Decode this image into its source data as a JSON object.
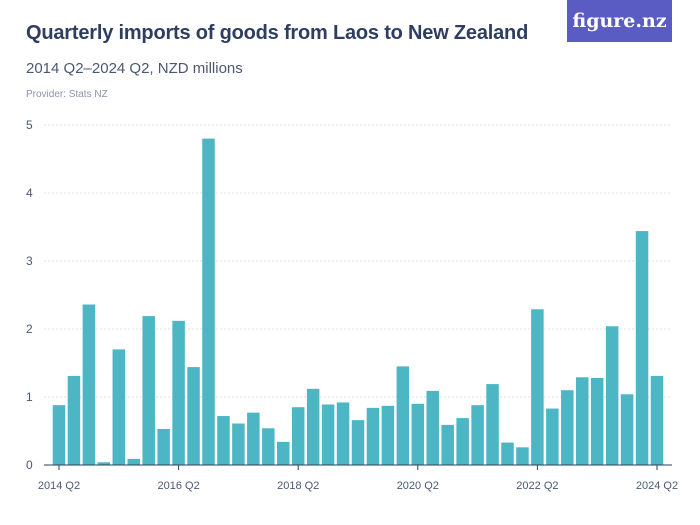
{
  "brand": {
    "logo_text": "figure.nz"
  },
  "chart_data": {
    "type": "bar",
    "title": "Quarterly imports of goods from Laos to New Zealand",
    "subtitle": "2014 Q2–2024 Q2, NZD millions",
    "provider": "Provider: Stats NZ",
    "xlabel": "",
    "ylabel": "",
    "ylim": [
      0,
      5
    ],
    "yticks": [
      0,
      1,
      2,
      3,
      4,
      5
    ],
    "bar_color": "#4db6c4",
    "grid": true,
    "categories": [
      "2014 Q2",
      "2014 Q3",
      "2014 Q4",
      "2015 Q1",
      "2015 Q2",
      "2015 Q3",
      "2015 Q4",
      "2016 Q1",
      "2016 Q2",
      "2016 Q3",
      "2016 Q4",
      "2017 Q1",
      "2017 Q2",
      "2017 Q3",
      "2017 Q4",
      "2018 Q1",
      "2018 Q2",
      "2018 Q3",
      "2018 Q4",
      "2019 Q1",
      "2019 Q2",
      "2019 Q3",
      "2019 Q4",
      "2020 Q1",
      "2020 Q2",
      "2020 Q3",
      "2020 Q4",
      "2021 Q1",
      "2021 Q2",
      "2021 Q3",
      "2021 Q4",
      "2022 Q1",
      "2022 Q2",
      "2022 Q3",
      "2022 Q4",
      "2023 Q1",
      "2023 Q2",
      "2023 Q3",
      "2023 Q4",
      "2024 Q1",
      "2024 Q2"
    ],
    "values": [
      0.88,
      1.31,
      2.36,
      0.04,
      1.7,
      0.09,
      2.19,
      0.53,
      2.12,
      1.44,
      4.8,
      0.72,
      0.61,
      0.77,
      0.54,
      0.34,
      0.85,
      1.12,
      0.89,
      0.92,
      0.66,
      0.84,
      0.87,
      1.45,
      0.9,
      1.09,
      0.59,
      0.69,
      0.88,
      1.19,
      0.33,
      0.26,
      2.29,
      0.83,
      1.1,
      1.29,
      1.28,
      2.04,
      1.04,
      3.44,
      1.31
    ],
    "xtick_labels": [
      "2014 Q2",
      "2016 Q2",
      "2018 Q2",
      "2020 Q2",
      "2022 Q2",
      "2024 Q2"
    ]
  }
}
